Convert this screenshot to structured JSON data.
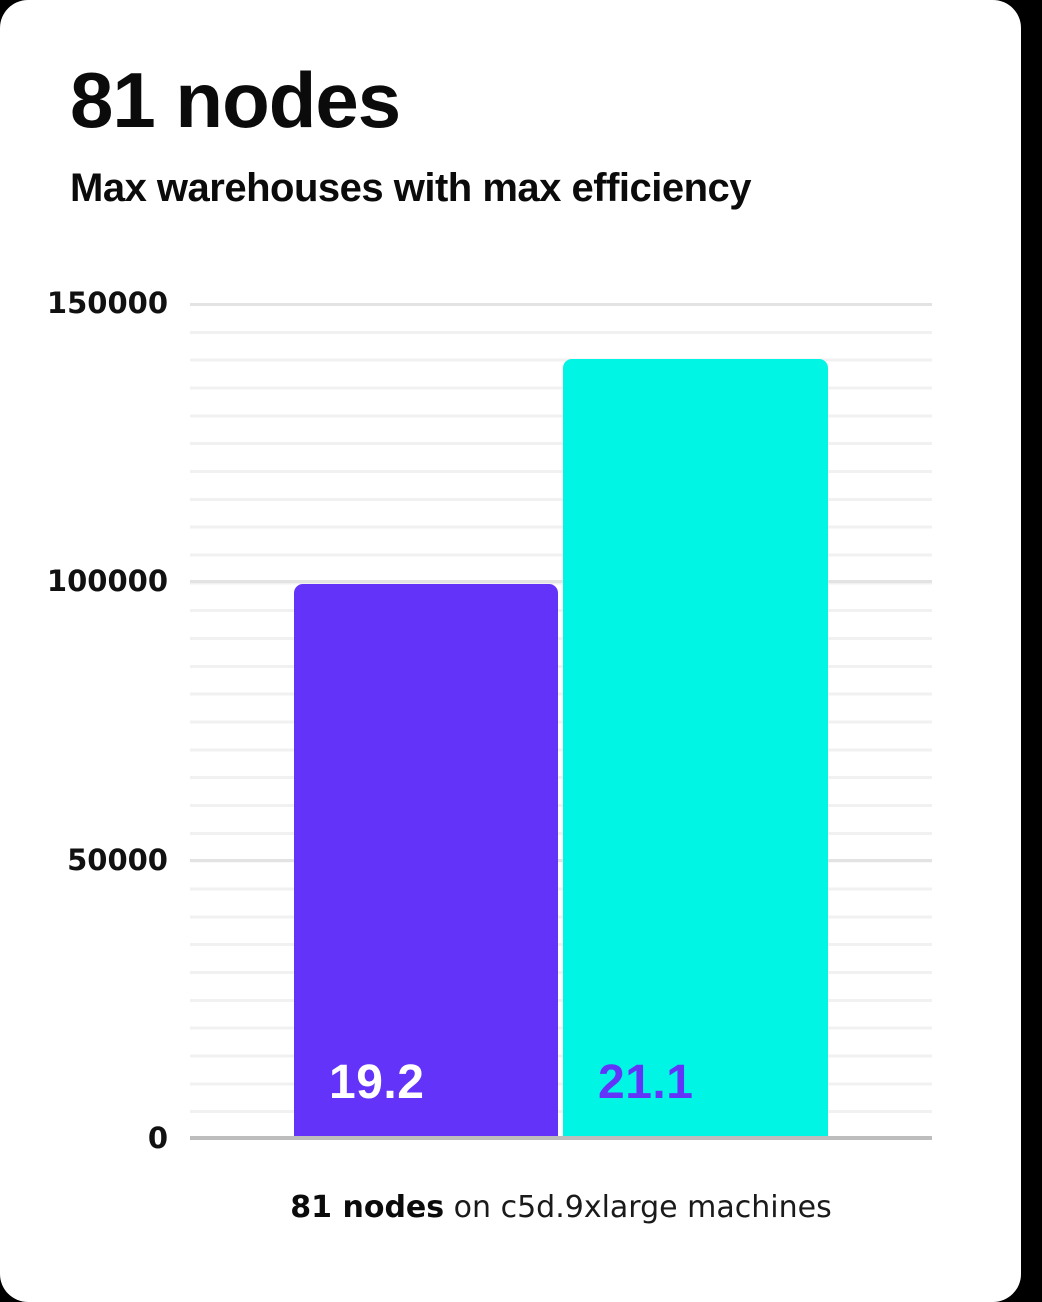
{
  "header": {
    "title": "81 nodes",
    "subtitle": "Max warehouses with max efficiency"
  },
  "chart_data": {
    "type": "bar",
    "categories": [
      "19.2",
      "21.1"
    ],
    "values": [
      99500,
      140000
    ],
    "bar_value_labels": [
      "19.2",
      "21.1"
    ],
    "title": "81 nodes",
    "subtitle": "Max warehouses with max efficiency",
    "xlabel": "",
    "ylabel": "",
    "ylim": [
      0,
      150000
    ],
    "y_ticks": [
      "150000",
      "100000",
      "50000",
      "0"
    ],
    "minor_gridline_step": 5000,
    "major_gridline_step": 50000,
    "grid": true,
    "legend": false,
    "colors": {
      "bar_19_2": "#6333FA",
      "bar_21_1": "#00F5E5",
      "label_on_bar_19_2": "#FFFFFF",
      "label_on_bar_21_1": "#6333FA",
      "minor_gridline": "#F1F1F1",
      "major_gridline": "#E3E3E3",
      "axis_line": "#BDBDBD",
      "card_background": "#FFFFFF",
      "page_background": "#000000"
    }
  },
  "caption": {
    "bold": "81 nodes",
    "rest": " on c5d.9xlarge machines"
  }
}
